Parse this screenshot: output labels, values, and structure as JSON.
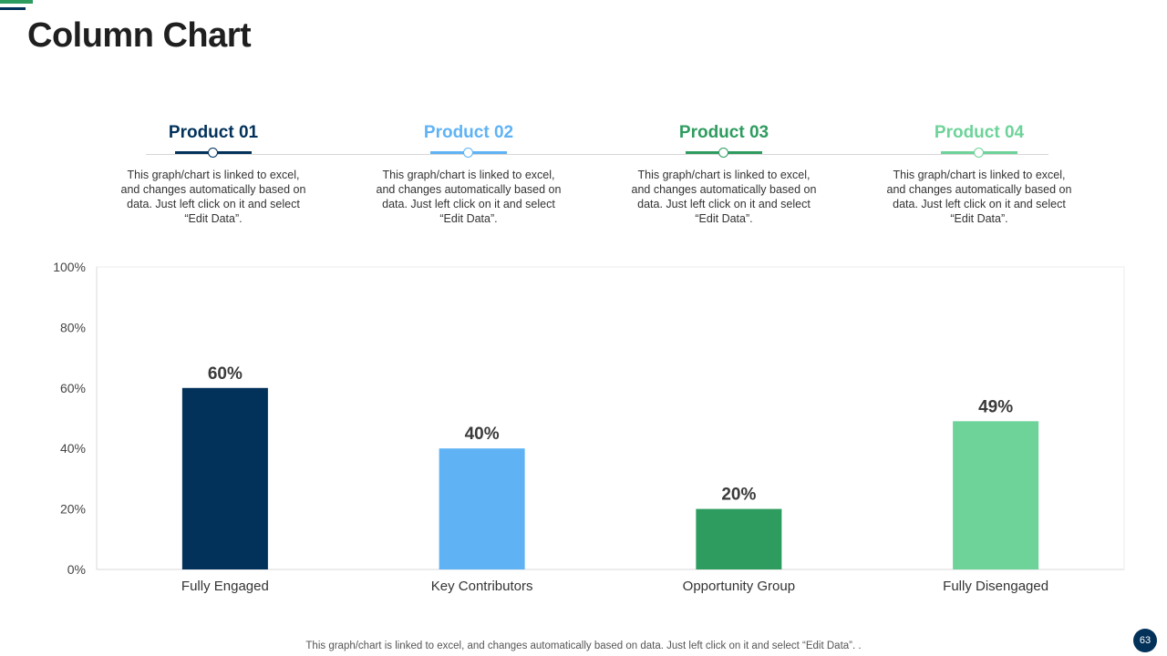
{
  "page": {
    "title": "Column Chart",
    "page_number": "63",
    "footer_note": "This graph/chart is linked to excel,  and changes automatically based on data. Just left click on it and select “Edit Data”. ."
  },
  "products": [
    {
      "title": "Product 01",
      "color": "#02315a",
      "description": "This graph/chart is linked to excel, and changes automatically based on data. Just left click on it and select “Edit Data”."
    },
    {
      "title": "Product 02",
      "color": "#5fb3f5",
      "description": "This graph/chart is linked to excel, and changes automatically based on data. Just left click on it and select “Edit Data”."
    },
    {
      "title": "Product 03",
      "color": "#2e9c5f",
      "description": "This graph/chart is linked to excel, and changes automatically based on data. Just left click on it and select “Edit Data”."
    },
    {
      "title": "Product 04",
      "color": "#6dd399",
      "description": "This graph/chart is linked to excel, and changes automatically based on data. Just left click on it and select “Edit Data”."
    }
  ],
  "chart_data": {
    "type": "bar",
    "title": "",
    "xlabel": "",
    "ylabel": "",
    "categories": [
      "Fully Engaged",
      "Key Contributors",
      "Opportunity Group",
      "Fully Disengaged"
    ],
    "values": [
      60,
      40,
      20,
      49
    ],
    "data_labels": [
      "60%",
      "40%",
      "20%",
      "49%"
    ],
    "colors": [
      "#02315a",
      "#5fb3f5",
      "#2e9c5f",
      "#6dd399"
    ],
    "ylim": [
      0,
      100
    ],
    "yticks": [
      0,
      20,
      40,
      60,
      80,
      100
    ],
    "ytick_labels": [
      "0%",
      "20%",
      "40%",
      "60%",
      "80%",
      "100%"
    ],
    "grid": false,
    "legend": "none"
  }
}
